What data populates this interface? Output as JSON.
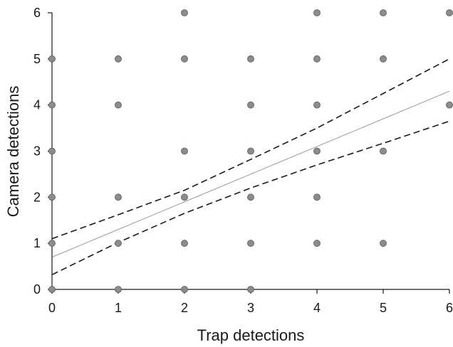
{
  "chart_data": {
    "type": "scatter",
    "xlabel": "Trap detections",
    "ylabel": "Camera detections",
    "xlim": [
      0,
      6
    ],
    "ylim": [
      0,
      6
    ],
    "xticks": [
      "0",
      "1",
      "2",
      "3",
      "4",
      "5",
      "6"
    ],
    "yticks": [
      "0",
      "1",
      "2",
      "3",
      "4",
      "5",
      "6"
    ],
    "grid": false,
    "points": [
      {
        "x": 0,
        "y": 0
      },
      {
        "x": 0,
        "y": 1
      },
      {
        "x": 0,
        "y": 2
      },
      {
        "x": 0,
        "y": 3
      },
      {
        "x": 0,
        "y": 4
      },
      {
        "x": 0,
        "y": 5
      },
      {
        "x": 1,
        "y": 0
      },
      {
        "x": 1,
        "y": 1
      },
      {
        "x": 1,
        "y": 2
      },
      {
        "x": 1,
        "y": 4
      },
      {
        "x": 1,
        "y": 5
      },
      {
        "x": 2,
        "y": 0
      },
      {
        "x": 2,
        "y": 1
      },
      {
        "x": 2,
        "y": 2
      },
      {
        "x": 2,
        "y": 3
      },
      {
        "x": 2,
        "y": 5
      },
      {
        "x": 2,
        "y": 6
      },
      {
        "x": 3,
        "y": 0
      },
      {
        "x": 3,
        "y": 1
      },
      {
        "x": 3,
        "y": 2
      },
      {
        "x": 3,
        "y": 3
      },
      {
        "x": 3,
        "y": 4
      },
      {
        "x": 3,
        "y": 5
      },
      {
        "x": 4,
        "y": 1
      },
      {
        "x": 4,
        "y": 2
      },
      {
        "x": 4,
        "y": 3
      },
      {
        "x": 4,
        "y": 4
      },
      {
        "x": 4,
        "y": 5
      },
      {
        "x": 4,
        "y": 6
      },
      {
        "x": 5,
        "y": 1
      },
      {
        "x": 5,
        "y": 3
      },
      {
        "x": 5,
        "y": 5
      },
      {
        "x": 5,
        "y": 6
      },
      {
        "x": 6,
        "y": 4
      },
      {
        "x": 6,
        "y": 6
      }
    ],
    "fit_line": {
      "x": [
        0,
        6
      ],
      "y": [
        0.7,
        4.3
      ]
    },
    "ci_lower": {
      "x": [
        0,
        1,
        2,
        3,
        4,
        5,
        6
      ],
      "y": [
        0.32,
        1.02,
        1.65,
        2.2,
        2.7,
        3.17,
        3.65
      ]
    },
    "ci_upper": {
      "x": [
        0,
        1,
        2,
        3,
        4,
        5,
        6
      ],
      "y": [
        1.1,
        1.62,
        2.15,
        2.82,
        3.5,
        4.25,
        5.0
      ]
    },
    "colors": {
      "point_fill": "#8c8c8c",
      "point_stroke": "#5a5a5a",
      "fit_line": "#9a9a9a",
      "ci_lines": "#1a1a1a",
      "axis": "#1a1a1a"
    }
  }
}
